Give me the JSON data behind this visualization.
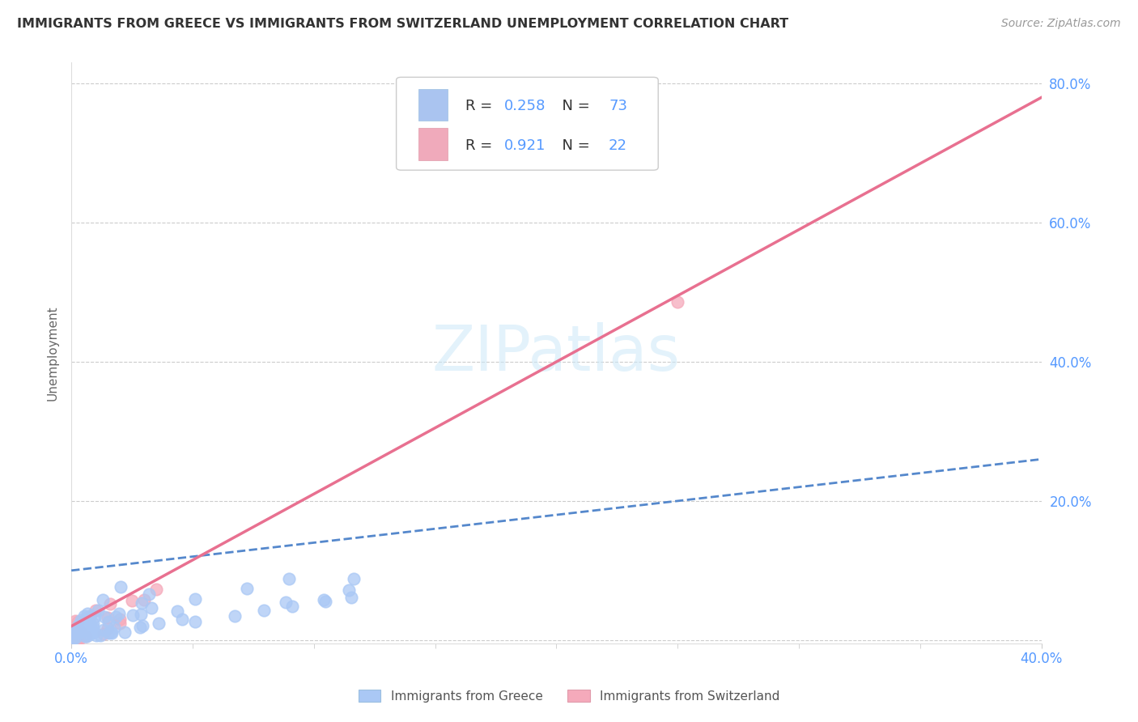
{
  "title": "IMMIGRANTS FROM GREECE VS IMMIGRANTS FROM SWITZERLAND UNEMPLOYMENT CORRELATION CHART",
  "source": "Source: ZipAtlas.com",
  "ylabel": "Unemployment",
  "xlim": [
    0.0,
    0.4
  ],
  "ylim": [
    -0.005,
    0.83
  ],
  "ytick_positions": [
    0.0,
    0.2,
    0.4,
    0.6,
    0.8
  ],
  "ytick_labels": [
    "",
    "20.0%",
    "40.0%",
    "60.0%",
    "80.0%"
  ],
  "xtick_minor_positions": [
    0.05,
    0.1,
    0.15,
    0.2,
    0.25,
    0.3,
    0.35
  ],
  "legend_greece": {
    "R": "0.258",
    "N": "73",
    "color": "#aac4f0"
  },
  "legend_switzerland": {
    "R": "0.921",
    "N": "22",
    "color": "#f0aabb"
  },
  "watermark_text": "ZIPatlas",
  "greece_line_color": "#5588cc",
  "switzerland_line_color": "#e87090",
  "axis_tick_color": "#5599ff",
  "grid_color": "#cccccc",
  "title_color": "#333333",
  "source_color": "#999999",
  "ylabel_color": "#666666",
  "scatter_size": 110,
  "greece_scatter_color": "#aac8f5",
  "switzerland_scatter_color": "#f5aabb",
  "scatter_alpha": 0.75
}
